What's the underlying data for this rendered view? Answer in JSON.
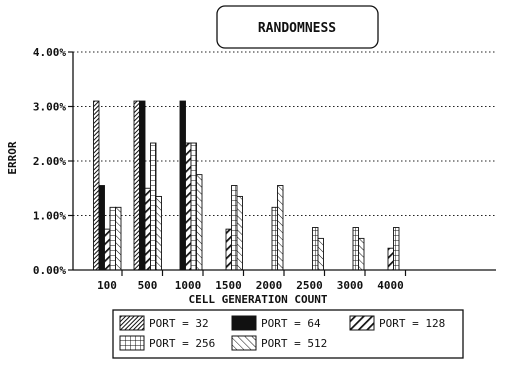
{
  "chart_data": {
    "type": "bar",
    "title": "RANDOMNESS",
    "xlabel": "CELL GENERATION COUNT",
    "ylabel": "ERROR",
    "ylim": [
      0,
      4
    ],
    "y_ticks": [
      "0.00%",
      "1.00%",
      "2.00%",
      "3.00%",
      "4.00%"
    ],
    "grid": "horizontal dotted",
    "legend_position": "bottom",
    "categories": [
      "100",
      "500",
      "1000",
      "1500",
      "2000",
      "2500",
      "3000",
      "4000"
    ],
    "series": [
      {
        "name": "PORT = 32",
        "pattern": "dense-diagonal",
        "values": [
          3.1,
          3.1,
          0,
          0,
          0,
          0,
          0,
          0
        ]
      },
      {
        "name": "PORT = 64",
        "pattern": "solid-black",
        "values": [
          1.55,
          3.1,
          3.1,
          0,
          0,
          0,
          0,
          0
        ]
      },
      {
        "name": "PORT = 128",
        "pattern": "wide-diagonal",
        "values": [
          0.75,
          1.5,
          2.33,
          0.75,
          0,
          0,
          0,
          0.4
        ]
      },
      {
        "name": "PORT = 256",
        "pattern": "grid",
        "values": [
          1.15,
          2.33,
          2.33,
          1.55,
          1.15,
          0.78,
          0.78,
          0.78
        ]
      },
      {
        "name": "PORT = 512",
        "pattern": "light-diagonal",
        "values": [
          1.15,
          1.35,
          1.75,
          1.35,
          1.55,
          0.58,
          0.58,
          0
        ]
      }
    ]
  }
}
